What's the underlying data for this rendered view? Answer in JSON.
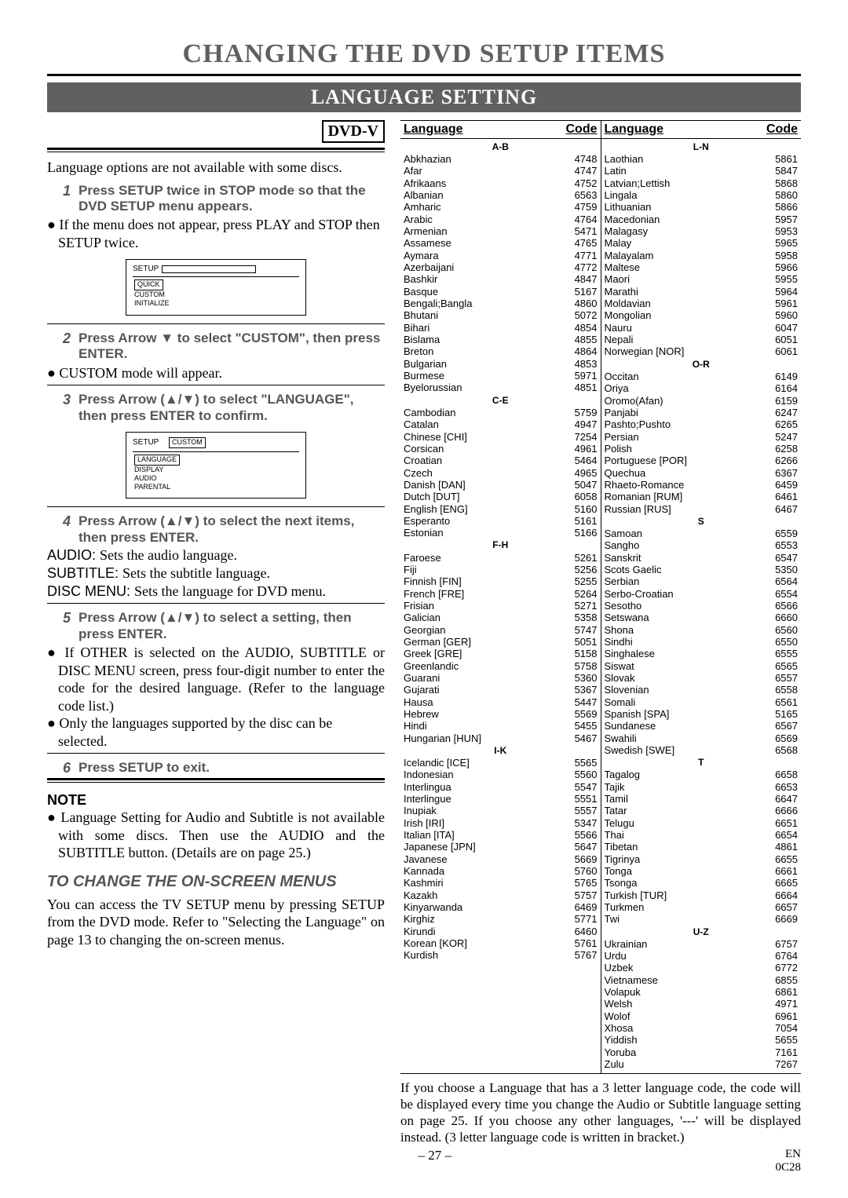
{
  "title": "CHANGING THE DVD SETUP ITEMS",
  "subtitle": "LANGUAGE SETTING",
  "badge": "DVD-V",
  "intro": "Language options are not available with some discs.",
  "step1": "Press SETUP twice in STOP mode so that the DVD SETUP menu appears.",
  "step1_bullet": "If the menu does not appear, press PLAY and STOP then SETUP twice.",
  "diagram1": {
    "setup": "SETUP",
    "items": [
      "QUICK",
      "CUSTOM",
      "INITIALIZE"
    ]
  },
  "step2": "Press Arrow ▼ to select \"CUSTOM\", then press ENTER.",
  "step2_bullet": "CUSTOM mode will appear.",
  "step3": "Press Arrow (▲/▼) to select \"LANGUAGE\", then press ENTER to confirm.",
  "diagram2": {
    "setup": "SETUP",
    "custom": "CUSTOM",
    "items": [
      "LANGUAGE",
      "DISPLAY",
      "AUDIO",
      "PARENTAL"
    ]
  },
  "step4": "Press Arrow (▲/▼) to select the next items, then press ENTER.",
  "audio_line": "Sets the audio language.",
  "subtitle_line": "Sets the subtitle language.",
  "discmenu_line": "Sets the language for DVD menu.",
  "step5": "Press Arrow (▲/▼) to select a setting, then press ENTER.",
  "step5_b1": "If OTHER is selected on the AUDIO, SUBTITLE or DISC MENU screen, press four-digit number to enter the code for the desired language. (Refer to the language code list.)",
  "step5_b2": "Only the languages supported by the disc can be selected.",
  "step6": "Press SETUP to exit.",
  "note_head": "NOTE",
  "note_bullet": "Language Setting for Audio and Subtitle is not available with some discs. Then use the AUDIO and the SUBTITLE button. (Details are on page 25.)",
  "onscreen_head": "TO CHANGE THE ON-SCREEN MENUS",
  "onscreen_body": "You can access the TV SETUP menu by pressing SETUP from the DVD mode. Refer to \"Selecting the Language\" on page 13 to changing the on-screen menus.",
  "headers": {
    "lang": "Language",
    "code": "Code"
  },
  "groups_left": [
    {
      "h": "A-B",
      "rows": [
        [
          "Abkhazian",
          "4748"
        ],
        [
          "Afar",
          "4747"
        ],
        [
          "Afrikaans",
          "4752"
        ],
        [
          "Albanian",
          "6563"
        ],
        [
          "Amharic",
          "4759"
        ],
        [
          "Arabic",
          "4764"
        ],
        [
          "Armenian",
          "5471"
        ],
        [
          "Assamese",
          "4765"
        ],
        [
          "Aymara",
          "4771"
        ],
        [
          "Azerbaijani",
          "4772"
        ],
        [
          "Bashkir",
          "4847"
        ],
        [
          "Basque",
          "5167"
        ],
        [
          "Bengali;Bangla",
          "4860"
        ],
        [
          "Bhutani",
          "5072"
        ],
        [
          "Bihari",
          "4854"
        ],
        [
          "Bislama",
          "4855"
        ],
        [
          "Breton",
          "4864"
        ],
        [
          "Bulgarian",
          "4853"
        ],
        [
          "Burmese",
          "5971"
        ],
        [
          "Byelorussian",
          "4851"
        ]
      ]
    },
    {
      "h": "C-E",
      "rows": [
        [
          "Cambodian",
          "5759"
        ],
        [
          "Catalan",
          "4947"
        ],
        [
          "Chinese [CHI]",
          "7254"
        ],
        [
          "Corsican",
          "4961"
        ],
        [
          "Croatian",
          "5464"
        ],
        [
          "Czech",
          "4965"
        ],
        [
          "Danish [DAN]",
          "5047"
        ],
        [
          "Dutch [DUT]",
          "6058"
        ],
        [
          "English [ENG]",
          "5160"
        ],
        [
          "Esperanto",
          "5161"
        ],
        [
          "Estonian",
          "5166"
        ]
      ]
    },
    {
      "h": "F-H",
      "rows": [
        [
          "Faroese",
          "5261"
        ],
        [
          "Fiji",
          "5256"
        ],
        [
          "Finnish [FIN]",
          "5255"
        ],
        [
          "French [FRE]",
          "5264"
        ],
        [
          "Frisian",
          "5271"
        ],
        [
          "Galician",
          "5358"
        ],
        [
          "Georgian",
          "5747"
        ],
        [
          "German [GER]",
          "5051"
        ],
        [
          "Greek [GRE]",
          "5158"
        ],
        [
          "Greenlandic",
          "5758"
        ],
        [
          "Guarani",
          "5360"
        ],
        [
          "Gujarati",
          "5367"
        ],
        [
          "Hausa",
          "5447"
        ],
        [
          "Hebrew",
          "5569"
        ],
        [
          "Hindi",
          "5455"
        ],
        [
          "Hungarian [HUN]",
          "5467"
        ]
      ]
    },
    {
      "h": "I-K",
      "rows": [
        [
          "Icelandic [ICE]",
          "5565"
        ],
        [
          "Indonesian",
          "5560"
        ],
        [
          "Interlingua",
          "5547"
        ],
        [
          "Interlingue",
          "5551"
        ],
        [
          "Inupiak",
          "5557"
        ],
        [
          "Irish [IRI]",
          "5347"
        ],
        [
          "Italian [ITA]",
          "5566"
        ],
        [
          "Japanese [JPN]",
          "5647"
        ],
        [
          "Javanese",
          "5669"
        ],
        [
          "Kannada",
          "5760"
        ],
        [
          "Kashmiri",
          "5765"
        ],
        [
          "Kazakh",
          "5757"
        ],
        [
          "Kinyarwanda",
          "6469"
        ],
        [
          "Kirghiz",
          "5771"
        ],
        [
          "Kirundi",
          "6460"
        ],
        [
          "Korean [KOR]",
          "5761"
        ],
        [
          "Kurdish",
          "5767"
        ]
      ]
    }
  ],
  "groups_right": [
    {
      "h": "L-N",
      "rows": [
        [
          "Laothian",
          "5861"
        ],
        [
          "Latin",
          "5847"
        ],
        [
          "Latvian;Lettish",
          "5868"
        ],
        [
          "Lingala",
          "5860"
        ],
        [
          "Lithuanian",
          "5866"
        ],
        [
          "Macedonian",
          "5957"
        ],
        [
          "Malagasy",
          "5953"
        ],
        [
          "Malay",
          "5965"
        ],
        [
          "Malayalam",
          "5958"
        ],
        [
          "Maltese",
          "5966"
        ],
        [
          "Maori",
          "5955"
        ],
        [
          "Marathi",
          "5964"
        ],
        [
          "Moldavian",
          "5961"
        ],
        [
          "Mongolian",
          "5960"
        ],
        [
          "Nauru",
          "6047"
        ],
        [
          "Nepali",
          "6051"
        ],
        [
          "Norwegian [NOR]",
          "6061"
        ]
      ]
    },
    {
      "h": "O-R",
      "rows": [
        [
          "Occitan",
          "6149"
        ],
        [
          "Oriya",
          "6164"
        ],
        [
          "Oromo(Afan)",
          "6159"
        ],
        [
          "Panjabi",
          "6247"
        ],
        [
          "Pashto;Pushto",
          "6265"
        ],
        [
          "Persian",
          "5247"
        ],
        [
          "Polish",
          "6258"
        ],
        [
          "Portuguese [POR]",
          "6266"
        ],
        [
          "Quechua",
          "6367"
        ],
        [
          "Rhaeto-Romance",
          "6459"
        ],
        [
          "Romanian [RUM]",
          "6461"
        ],
        [
          "Russian [RUS]",
          "6467"
        ]
      ]
    },
    {
      "h": "S",
      "rows": [
        [
          "Samoan",
          "6559"
        ],
        [
          "Sangho",
          "6553"
        ],
        [
          "Sanskrit",
          "6547"
        ],
        [
          "Scots Gaelic",
          "5350"
        ],
        [
          "Serbian",
          "6564"
        ],
        [
          "Serbo-Croatian",
          "6554"
        ],
        [
          "Sesotho",
          "6566"
        ],
        [
          "Setswana",
          "6660"
        ],
        [
          "Shona",
          "6560"
        ],
        [
          "Sindhi",
          "6550"
        ],
        [
          "Singhalese",
          "6555"
        ],
        [
          "Siswat",
          "6565"
        ],
        [
          "Slovak",
          "6557"
        ],
        [
          "Slovenian",
          "6558"
        ],
        [
          "Somali",
          "6561"
        ],
        [
          "Spanish [SPA]",
          "5165"
        ],
        [
          "Sundanese",
          "6567"
        ],
        [
          "Swahili",
          "6569"
        ],
        [
          "Swedish [SWE]",
          "6568"
        ]
      ]
    },
    {
      "h": "T",
      "rows": [
        [
          "Tagalog",
          "6658"
        ],
        [
          "Tajik",
          "6653"
        ],
        [
          "Tamil",
          "6647"
        ],
        [
          "Tatar",
          "6666"
        ],
        [
          "Telugu",
          "6651"
        ],
        [
          "Thai",
          "6654"
        ],
        [
          "Tibetan",
          "4861"
        ],
        [
          "Tigrinya",
          "6655"
        ],
        [
          "Tonga",
          "6661"
        ],
        [
          "Tsonga",
          "6665"
        ],
        [
          "Turkish [TUR]",
          "6664"
        ],
        [
          "Turkmen",
          "6657"
        ],
        [
          "Twi",
          "6669"
        ]
      ]
    },
    {
      "h": "U-Z",
      "rows": [
        [
          "Ukrainian",
          "6757"
        ],
        [
          "Urdu",
          "6764"
        ],
        [
          "Uzbek",
          "6772"
        ],
        [
          "Vietnamese",
          "6855"
        ],
        [
          "Volapuk",
          "6861"
        ],
        [
          "Welsh",
          "4971"
        ],
        [
          "Wolof",
          "6961"
        ],
        [
          "Xhosa",
          "7054"
        ],
        [
          "Yiddish",
          "5655"
        ],
        [
          "Yoruba",
          "7161"
        ],
        [
          "Zulu",
          "7267"
        ]
      ]
    }
  ],
  "footnote": "If you choose a Language that has a 3 letter language code, the code will be displayed every time you change the Audio or Subtitle language setting on page 25. If you choose any other languages, '---' will be displayed instead. (3 letter language code is written in bracket.)",
  "page_num": "– 27 –",
  "page_en": "EN",
  "page_code": "0C28"
}
